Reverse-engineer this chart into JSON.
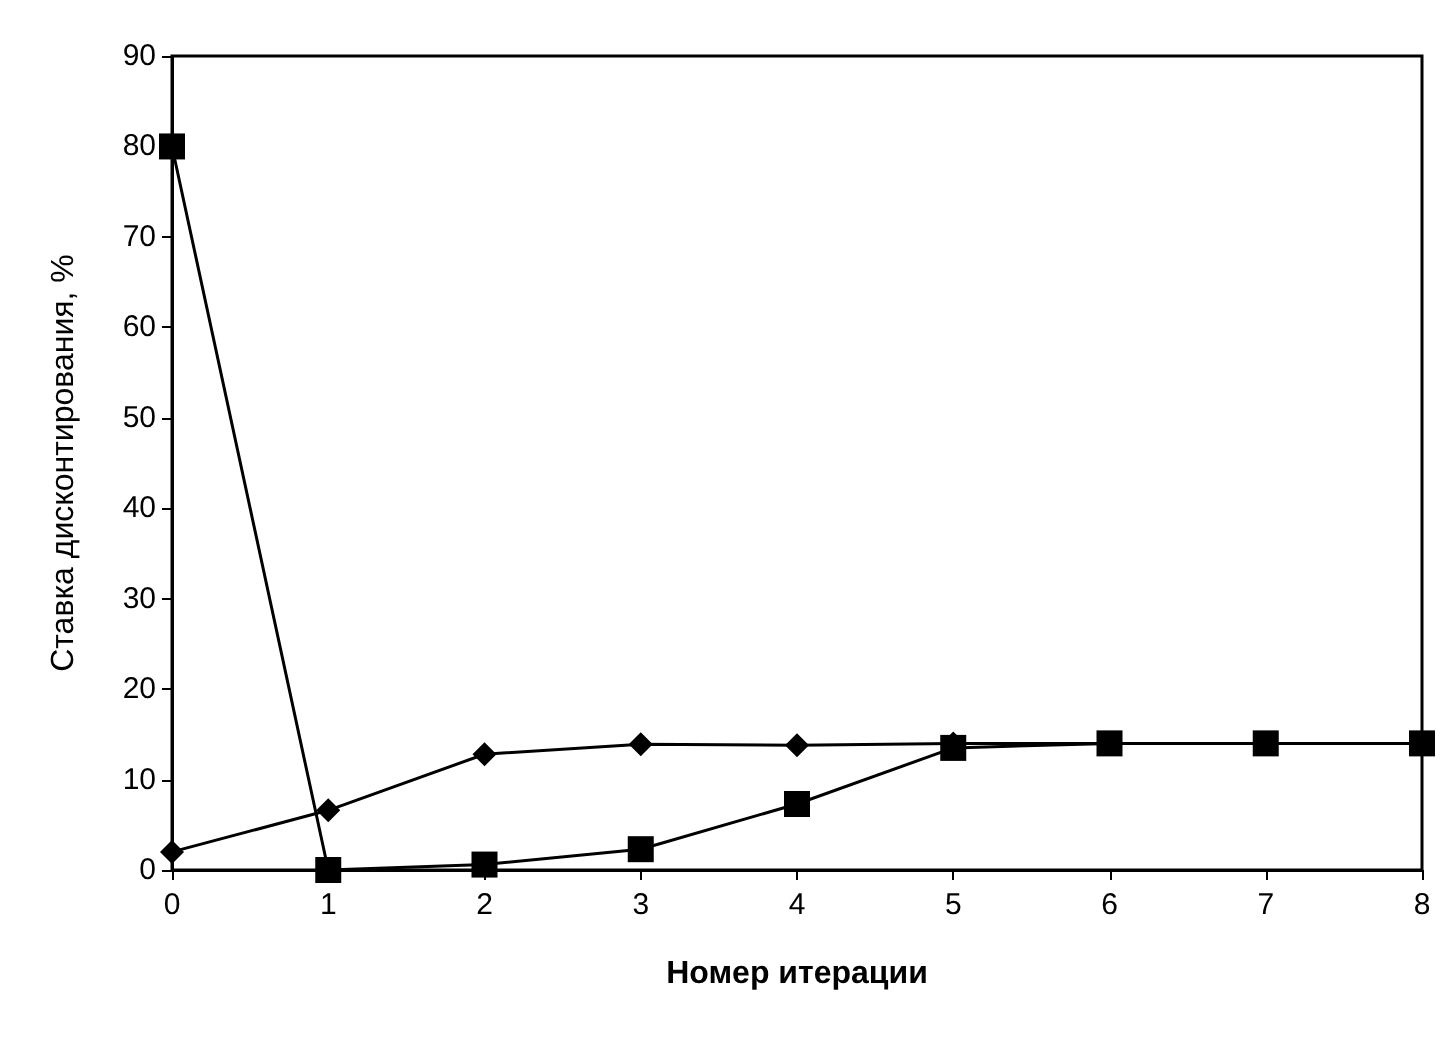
{
  "chart_data": {
    "type": "line",
    "xlabel": "Номер итерации",
    "ylabel": "Ставка дисконтирования, %",
    "x": [
      0,
      1,
      2,
      3,
      4,
      5,
      6,
      7,
      8
    ],
    "series": [
      {
        "color": "#000000",
        "marker": "diamond",
        "values": [
          2,
          6.6,
          12.8,
          13.9,
          13.8,
          14,
          14,
          14,
          14
        ]
      },
      {
        "color": "#000000",
        "marker": "square",
        "values": [
          80,
          0,
          0.6,
          2.3,
          7.3,
          13.5,
          14,
          14,
          14
        ]
      }
    ],
    "xlim": [
      0,
      8
    ],
    "xticks": [
      0,
      1,
      2,
      3,
      4,
      5,
      6,
      7,
      8
    ],
    "ylim": [
      0,
      90
    ],
    "yticks": [
      0,
      10,
      20,
      30,
      40,
      50,
      60,
      70,
      80,
      90
    ],
    "line_style": "solid"
  }
}
